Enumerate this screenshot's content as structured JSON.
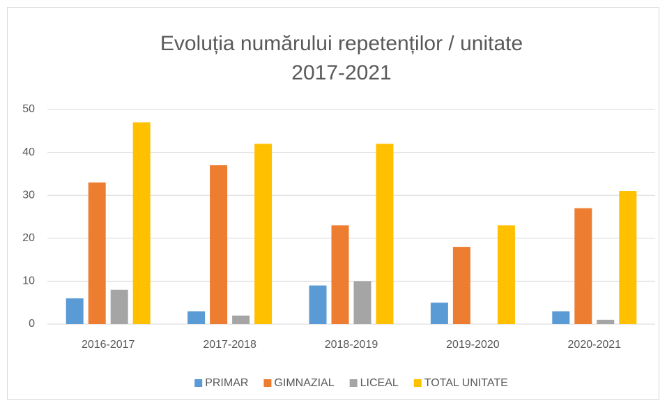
{
  "chart_data": {
    "type": "bar",
    "title": [
      "Evoluția numărului repetenților / unitate",
      "2017-2021"
    ],
    "categories": [
      "2016-2017",
      "2017-2018",
      "2018-2019",
      "2019-2020",
      "2020-2021"
    ],
    "series": [
      {
        "name": "PRIMAR",
        "color": "#5b9bd5",
        "values": [
          6,
          3,
          9,
          5,
          3
        ]
      },
      {
        "name": "GIMNAZIAL",
        "color": "#ed7d31",
        "values": [
          33,
          37,
          23,
          18,
          27
        ]
      },
      {
        "name": "LICEAL",
        "color": "#a5a5a5",
        "values": [
          8,
          2,
          10,
          0,
          1
        ]
      },
      {
        "name": "TOTAL UNITATE",
        "color": "#ffc000",
        "values": [
          47,
          42,
          42,
          23,
          31
        ]
      }
    ],
    "ylim": [
      0,
      50
    ],
    "yticks": [
      0,
      10,
      20,
      30,
      40,
      50
    ],
    "grid": true,
    "legend": "bottom"
  }
}
